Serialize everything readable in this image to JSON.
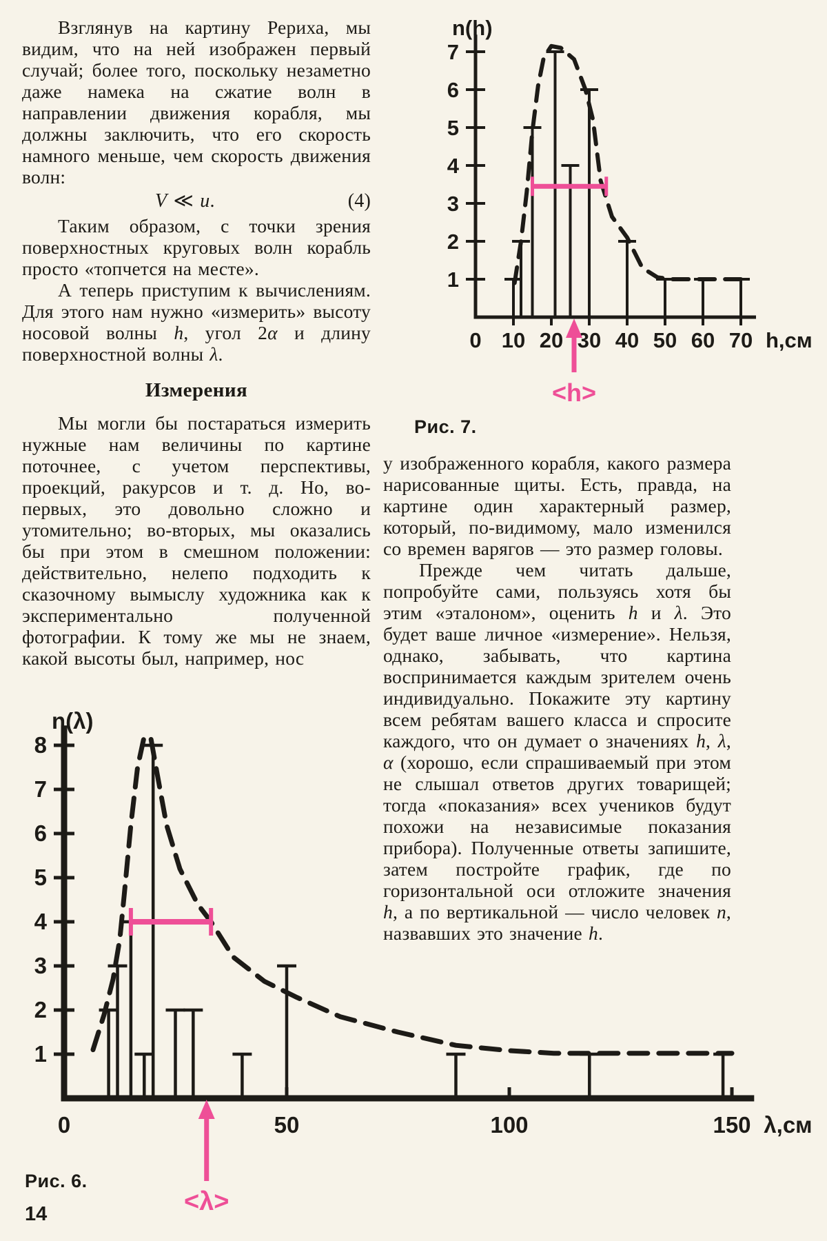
{
  "page": {
    "number": "14"
  },
  "colors": {
    "paper": "#f7f3e9",
    "ink": "#1d1b17",
    "pink": "#ee4f97"
  },
  "left_column": {
    "p1": "Взглянув на картину Рериха, мы видим, что на ней изображен первый случай; более того, поскольку незаметно даже намека на сжатие волн в направлении движения корабля, мы должны заключить, что его скорость намного меньше, чем скорость движения волн:",
    "formula": {
      "expr": "*V* ≪ *u*.",
      "number": "(4)"
    },
    "p2": "Таким образом, с точки зрения поверхностных круговых волн корабль просто «топчется на месте».",
    "p3": "А теперь приступим к вычислениям. Для этого нам нужно «измерить» высоту носовой волны *h*, угол 2*α* и длину поверхностной волны *λ*.",
    "heading": "Измерения",
    "p4": "Мы могли бы постараться измерить нужные нам величины по картине поточнее, с учетом перспективы, проекций, ракурсов и т. д. Но, во-первых, это довольно сложно и утомительно; во-вторых, мы оказались бы при этом в смешном положении: действительно, нелепо подходить к сказочному вымыслу художника как к экспериментально полученной фотографии. К тому же мы не знаем, какой высоты был, например, нос"
  },
  "right_column": {
    "p1": "у изображенного корабля, какого размера нарисованные щиты. Есть, правда, на картине один характерный размер, который, по-видимому, мало изменился со времен варягов — это размер головы.",
    "p2": "Прежде чем читать дальше, попробуйте сами, пользуясь хотя бы этим «эталоном», оценить *h* и *λ*. Это будет ваше личное «измерение». Нельзя, однако, забывать, что картина воспринимается каждым зрителем очень индивидуально. Покажите эту картину всем ребятам вашего класса и спросите каждого, что он думает о значениях *h*, *λ*, *α* (хорошо, если спрашиваемый при этом не слышал ответов других товарищей; тогда «показания» всех учеников будут похожи на независимые показания прибора). Полученные ответы запишите, затем постройте график, где по горизонтальной оси отложите значения *h*, а по вертикальной — число человек *n*, назвавших это значение *h*."
  },
  "chart_data": [
    {
      "type": "bar",
      "title": "Рис. 7.",
      "subtitle": "Histogram of pupils' estimates of bow-wave height h",
      "ylabel": "n(h)",
      "xlabel": "h,см",
      "xticks": [
        0,
        10,
        20,
        30,
        40,
        50,
        60,
        70
      ],
      "yticks": [
        1,
        2,
        3,
        4,
        5,
        6,
        7
      ],
      "xlim": [
        0,
        74
      ],
      "ylim": [
        0,
        7.45
      ],
      "grid": false,
      "bars": [
        [
          10,
          1
        ],
        [
          12,
          2
        ],
        [
          15,
          5
        ],
        [
          21,
          7
        ],
        [
          25,
          4
        ],
        [
          30,
          6
        ],
        [
          40,
          2
        ],
        [
          50,
          1
        ],
        [
          60,
          1
        ],
        [
          70,
          1
        ]
      ],
      "envelope": [
        [
          10.3,
          0.9
        ],
        [
          12,
          2.0
        ],
        [
          13.5,
          3.3
        ],
        [
          15,
          4.9
        ],
        [
          16.5,
          6.1
        ],
        [
          18,
          6.85
        ],
        [
          20,
          7.15
        ],
        [
          22.5,
          7.1
        ],
        [
          26,
          6.8
        ],
        [
          29,
          6.0
        ],
        [
          31,
          5.2
        ],
        [
          33,
          3.6
        ],
        [
          36,
          2.65
        ],
        [
          40,
          2.1
        ],
        [
          44,
          1.3
        ],
        [
          48,
          1.05
        ],
        [
          52,
          1.0
        ],
        [
          70,
          1.0
        ]
      ],
      "mean_line": {
        "y": 3.45,
        "x1": 15,
        "x2": 34.5
      },
      "mean_marker": {
        "x": 26,
        "label": "<h>"
      }
    },
    {
      "type": "bar",
      "title": "Рис. 6.",
      "subtitle": "Histogram of pupils' estimates of surface wavelength λ",
      "ylabel": "n(λ)",
      "xlabel": "λ,см",
      "xticks": [
        0,
        50,
        100,
        150
      ],
      "yticks": [
        1,
        2,
        3,
        4,
        5,
        6,
        7,
        8
      ],
      "xlim": [
        0,
        155
      ],
      "ylim": [
        0,
        8.45
      ],
      "grid": false,
      "bars": [
        [
          10,
          2
        ],
        [
          12,
          3
        ],
        [
          15,
          4
        ],
        [
          18,
          1
        ],
        [
          20,
          8
        ],
        [
          25,
          2
        ],
        [
          29,
          2
        ],
        [
          40,
          1
        ],
        [
          50,
          3
        ],
        [
          88,
          1
        ],
        [
          118,
          1
        ],
        [
          148,
          1
        ]
      ],
      "envelope": [
        [
          6.5,
          1.1
        ],
        [
          9,
          1.9
        ],
        [
          11,
          2.7
        ],
        [
          12.5,
          3.6
        ],
        [
          13.5,
          4.6
        ],
        [
          15,
          6.2
        ],
        [
          16.5,
          7.5
        ],
        [
          18,
          8.2
        ],
        [
          19.5,
          8.15
        ],
        [
          21,
          7.3
        ],
        [
          23,
          6.2
        ],
        [
          26,
          5.2
        ],
        [
          30,
          4.4
        ],
        [
          33,
          4.0
        ],
        [
          38,
          3.2
        ],
        [
          45,
          2.65
        ],
        [
          52,
          2.3
        ],
        [
          62,
          1.85
        ],
        [
          75,
          1.5
        ],
        [
          88,
          1.2
        ],
        [
          100,
          1.08
        ],
        [
          110,
          1.02
        ],
        [
          150,
          1.02
        ]
      ],
      "mean_line": {
        "y": 4.0,
        "x1": 15,
        "x2": 33
      },
      "mean_marker": {
        "x": 32,
        "label": "<λ>"
      }
    }
  ]
}
